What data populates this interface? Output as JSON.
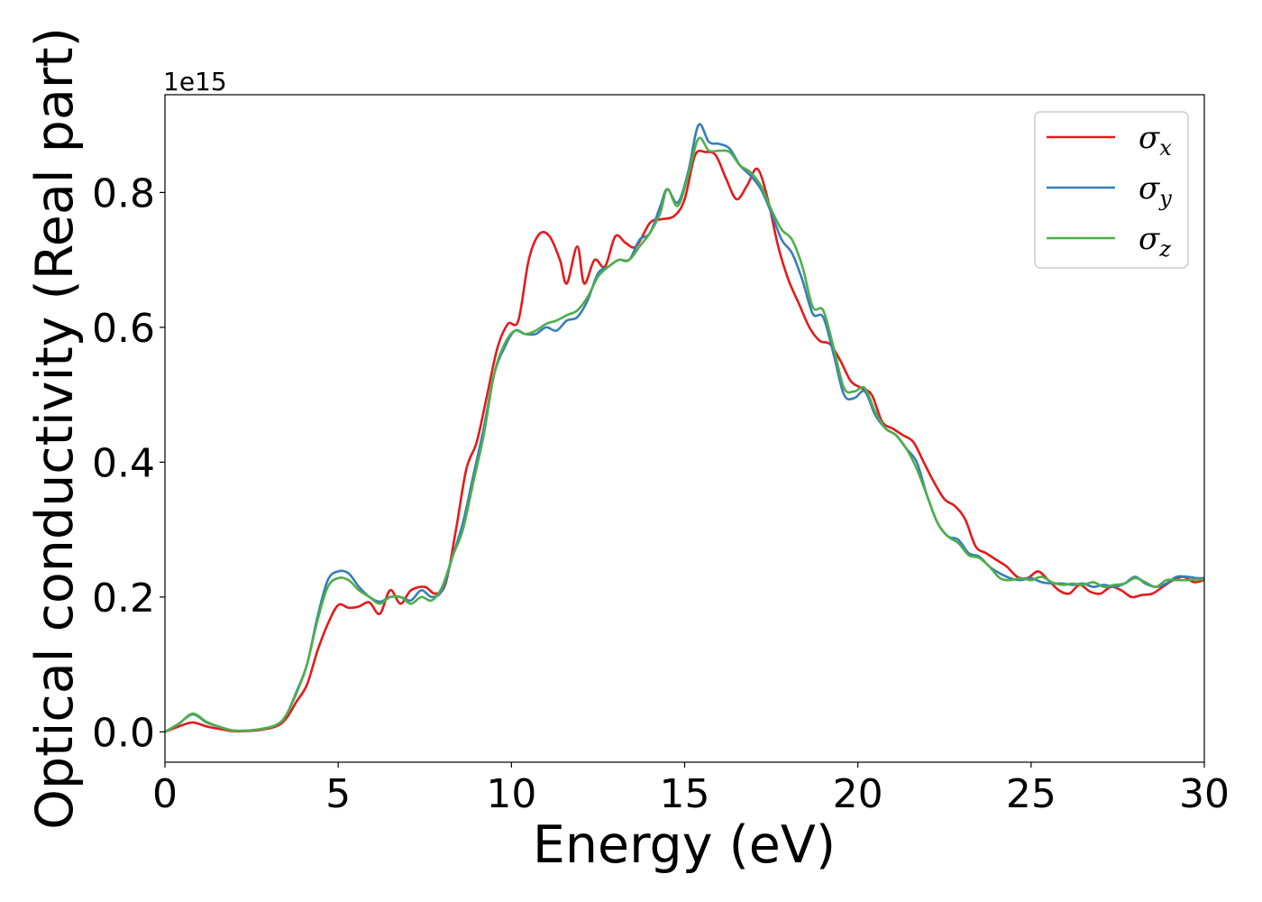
{
  "chart_data": {
    "type": "line",
    "xlabel": "Energy (eV)",
    "ylabel": "Optical conductivity (Real part)",
    "offset_text": "1e15",
    "xlim": [
      0,
      30
    ],
    "ylim": [
      -0.045,
      0.945
    ],
    "grid": false,
    "legend_position": "top-right",
    "x_ticks": [
      "0",
      "5",
      "10",
      "15",
      "20",
      "25",
      "30"
    ],
    "y_ticks": [
      "0.0",
      "0.2",
      "0.4",
      "0.6",
      "0.8"
    ],
    "series": [
      {
        "name": "σx",
        "legend_symbol": "σ",
        "legend_subscript": "x",
        "color": "#e41a1c",
        "points": [
          [
            0,
            0.0
          ],
          [
            0.4,
            0.008
          ],
          [
            0.8,
            0.014
          ],
          [
            1.2,
            0.008
          ],
          [
            1.6,
            0.004
          ],
          [
            2.0,
            0.001
          ],
          [
            2.6,
            0.002
          ],
          [
            3.2,
            0.008
          ],
          [
            3.5,
            0.02
          ],
          [
            3.8,
            0.045
          ],
          [
            4.1,
            0.07
          ],
          [
            4.4,
            0.12
          ],
          [
            4.7,
            0.16
          ],
          [
            5.0,
            0.188
          ],
          [
            5.3,
            0.184
          ],
          [
            5.6,
            0.186
          ],
          [
            5.9,
            0.192
          ],
          [
            6.2,
            0.175
          ],
          [
            6.5,
            0.21
          ],
          [
            6.8,
            0.19
          ],
          [
            7.1,
            0.21
          ],
          [
            7.5,
            0.215
          ],
          [
            7.8,
            0.205
          ],
          [
            8.1,
            0.22
          ],
          [
            8.4,
            0.3
          ],
          [
            8.7,
            0.39
          ],
          [
            9.0,
            0.43
          ],
          [
            9.3,
            0.5
          ],
          [
            9.6,
            0.57
          ],
          [
            9.9,
            0.605
          ],
          [
            10.2,
            0.61
          ],
          [
            10.5,
            0.7
          ],
          [
            10.8,
            0.738
          ],
          [
            11.1,
            0.735
          ],
          [
            11.4,
            0.7
          ],
          [
            11.6,
            0.665
          ],
          [
            11.9,
            0.72
          ],
          [
            12.1,
            0.665
          ],
          [
            12.4,
            0.7
          ],
          [
            12.7,
            0.69
          ],
          [
            13.0,
            0.735
          ],
          [
            13.3,
            0.725
          ],
          [
            13.6,
            0.72
          ],
          [
            14.0,
            0.755
          ],
          [
            14.3,
            0.76
          ],
          [
            14.7,
            0.765
          ],
          [
            15.0,
            0.79
          ],
          [
            15.3,
            0.855
          ],
          [
            15.6,
            0.86
          ],
          [
            15.9,
            0.855
          ],
          [
            16.2,
            0.82
          ],
          [
            16.5,
            0.79
          ],
          [
            16.8,
            0.81
          ],
          [
            17.1,
            0.835
          ],
          [
            17.4,
            0.79
          ],
          [
            17.7,
            0.72
          ],
          [
            18.0,
            0.67
          ],
          [
            18.3,
            0.635
          ],
          [
            18.6,
            0.6
          ],
          [
            18.9,
            0.58
          ],
          [
            19.2,
            0.575
          ],
          [
            19.5,
            0.55
          ],
          [
            19.8,
            0.52
          ],
          [
            20.1,
            0.51
          ],
          [
            20.4,
            0.5
          ],
          [
            20.7,
            0.46
          ],
          [
            21.0,
            0.45
          ],
          [
            21.3,
            0.44
          ],
          [
            21.6,
            0.43
          ],
          [
            21.9,
            0.4
          ],
          [
            22.2,
            0.37
          ],
          [
            22.5,
            0.345
          ],
          [
            22.8,
            0.335
          ],
          [
            23.1,
            0.315
          ],
          [
            23.4,
            0.275
          ],
          [
            23.7,
            0.265
          ],
          [
            24.0,
            0.255
          ],
          [
            24.3,
            0.245
          ],
          [
            24.6,
            0.23
          ],
          [
            24.9,
            0.228
          ],
          [
            25.2,
            0.238
          ],
          [
            25.5,
            0.225
          ],
          [
            25.8,
            0.21
          ],
          [
            26.1,
            0.205
          ],
          [
            26.4,
            0.218
          ],
          [
            26.7,
            0.208
          ],
          [
            27.0,
            0.205
          ],
          [
            27.3,
            0.215
          ],
          [
            27.6,
            0.21
          ],
          [
            27.9,
            0.2
          ],
          [
            28.2,
            0.203
          ],
          [
            28.5,
            0.205
          ],
          [
            28.8,
            0.215
          ],
          [
            29.1,
            0.225
          ],
          [
            29.4,
            0.23
          ],
          [
            29.7,
            0.222
          ],
          [
            30.0,
            0.225
          ]
        ]
      },
      {
        "name": "σy",
        "legend_symbol": "σ",
        "legend_subscript": "y",
        "color": "#377eb8",
        "points": [
          [
            0,
            0.0
          ],
          [
            0.4,
            0.012
          ],
          [
            0.8,
            0.026
          ],
          [
            1.2,
            0.014
          ],
          [
            1.6,
            0.007
          ],
          [
            2.0,
            0.002
          ],
          [
            2.6,
            0.003
          ],
          [
            3.2,
            0.01
          ],
          [
            3.5,
            0.025
          ],
          [
            3.8,
            0.06
          ],
          [
            4.1,
            0.1
          ],
          [
            4.4,
            0.17
          ],
          [
            4.7,
            0.225
          ],
          [
            5.0,
            0.238
          ],
          [
            5.3,
            0.235
          ],
          [
            5.6,
            0.215
          ],
          [
            5.9,
            0.2
          ],
          [
            6.2,
            0.193
          ],
          [
            6.5,
            0.2
          ],
          [
            6.8,
            0.2
          ],
          [
            7.1,
            0.195
          ],
          [
            7.4,
            0.21
          ],
          [
            7.7,
            0.2
          ],
          [
            8.0,
            0.21
          ],
          [
            8.3,
            0.26
          ],
          [
            8.6,
            0.31
          ],
          [
            8.9,
            0.38
          ],
          [
            9.2,
            0.45
          ],
          [
            9.5,
            0.53
          ],
          [
            9.8,
            0.57
          ],
          [
            10.1,
            0.595
          ],
          [
            10.4,
            0.59
          ],
          [
            10.7,
            0.59
          ],
          [
            11.0,
            0.6
          ],
          [
            11.3,
            0.595
          ],
          [
            11.6,
            0.61
          ],
          [
            11.9,
            0.615
          ],
          [
            12.2,
            0.64
          ],
          [
            12.5,
            0.68
          ],
          [
            12.8,
            0.69
          ],
          [
            13.1,
            0.7
          ],
          [
            13.4,
            0.7
          ],
          [
            13.7,
            0.73
          ],
          [
            14.0,
            0.74
          ],
          [
            14.3,
            0.78
          ],
          [
            14.5,
            0.805
          ],
          [
            14.8,
            0.785
          ],
          [
            15.1,
            0.83
          ],
          [
            15.4,
            0.9
          ],
          [
            15.7,
            0.875
          ],
          [
            16.0,
            0.872
          ],
          [
            16.3,
            0.865
          ],
          [
            16.6,
            0.84
          ],
          [
            16.9,
            0.825
          ],
          [
            17.2,
            0.805
          ],
          [
            17.5,
            0.77
          ],
          [
            17.8,
            0.73
          ],
          [
            18.1,
            0.71
          ],
          [
            18.4,
            0.67
          ],
          [
            18.7,
            0.62
          ],
          [
            19.0,
            0.615
          ],
          [
            19.3,
            0.56
          ],
          [
            19.6,
            0.5
          ],
          [
            19.9,
            0.495
          ],
          [
            20.2,
            0.505
          ],
          [
            20.5,
            0.47
          ],
          [
            20.8,
            0.45
          ],
          [
            21.1,
            0.44
          ],
          [
            21.4,
            0.42
          ],
          [
            21.7,
            0.4
          ],
          [
            22.0,
            0.35
          ],
          [
            22.3,
            0.31
          ],
          [
            22.6,
            0.29
          ],
          [
            22.9,
            0.285
          ],
          [
            23.2,
            0.265
          ],
          [
            23.5,
            0.26
          ],
          [
            23.8,
            0.245
          ],
          [
            24.1,
            0.235
          ],
          [
            24.4,
            0.228
          ],
          [
            24.7,
            0.225
          ],
          [
            25.0,
            0.228
          ],
          [
            25.3,
            0.222
          ],
          [
            25.6,
            0.22
          ],
          [
            25.9,
            0.22
          ],
          [
            26.2,
            0.218
          ],
          [
            26.5,
            0.22
          ],
          [
            26.8,
            0.215
          ],
          [
            27.1,
            0.218
          ],
          [
            27.4,
            0.215
          ],
          [
            27.7,
            0.22
          ],
          [
            28.0,
            0.23
          ],
          [
            28.3,
            0.22
          ],
          [
            28.6,
            0.215
          ],
          [
            28.9,
            0.22
          ],
          [
            29.2,
            0.23
          ],
          [
            29.5,
            0.23
          ],
          [
            29.8,
            0.228
          ],
          [
            30.0,
            0.228
          ]
        ]
      },
      {
        "name": "σz",
        "legend_symbol": "σ",
        "legend_subscript": "z",
        "color": "#4daf4a",
        "points": [
          [
            0,
            0.0
          ],
          [
            0.4,
            0.012
          ],
          [
            0.8,
            0.027
          ],
          [
            1.2,
            0.015
          ],
          [
            1.6,
            0.007
          ],
          [
            2.0,
            0.002
          ],
          [
            2.6,
            0.003
          ],
          [
            3.2,
            0.01
          ],
          [
            3.5,
            0.025
          ],
          [
            3.8,
            0.058
          ],
          [
            4.1,
            0.1
          ],
          [
            4.4,
            0.165
          ],
          [
            4.7,
            0.215
          ],
          [
            5.0,
            0.228
          ],
          [
            5.3,
            0.225
          ],
          [
            5.6,
            0.21
          ],
          [
            5.9,
            0.2
          ],
          [
            6.2,
            0.19
          ],
          [
            6.5,
            0.2
          ],
          [
            6.8,
            0.2
          ],
          [
            7.1,
            0.19
          ],
          [
            7.4,
            0.2
          ],
          [
            7.7,
            0.195
          ],
          [
            8.0,
            0.215
          ],
          [
            8.3,
            0.26
          ],
          [
            8.6,
            0.3
          ],
          [
            8.9,
            0.37
          ],
          [
            9.2,
            0.44
          ],
          [
            9.5,
            0.53
          ],
          [
            9.8,
            0.575
          ],
          [
            10.1,
            0.595
          ],
          [
            10.4,
            0.59
          ],
          [
            10.7,
            0.595
          ],
          [
            11.0,
            0.605
          ],
          [
            11.3,
            0.61
          ],
          [
            11.6,
            0.618
          ],
          [
            11.9,
            0.625
          ],
          [
            12.2,
            0.645
          ],
          [
            12.5,
            0.675
          ],
          [
            12.8,
            0.69
          ],
          [
            13.1,
            0.7
          ],
          [
            13.4,
            0.7
          ],
          [
            13.7,
            0.72
          ],
          [
            14.0,
            0.74
          ],
          [
            14.3,
            0.77
          ],
          [
            14.5,
            0.805
          ],
          [
            14.8,
            0.78
          ],
          [
            15.1,
            0.825
          ],
          [
            15.4,
            0.88
          ],
          [
            15.7,
            0.862
          ],
          [
            16.0,
            0.862
          ],
          [
            16.3,
            0.86
          ],
          [
            16.6,
            0.84
          ],
          [
            16.9,
            0.83
          ],
          [
            17.2,
            0.81
          ],
          [
            17.5,
            0.775
          ],
          [
            17.8,
            0.745
          ],
          [
            18.1,
            0.73
          ],
          [
            18.4,
            0.69
          ],
          [
            18.7,
            0.63
          ],
          [
            19.0,
            0.625
          ],
          [
            19.3,
            0.57
          ],
          [
            19.6,
            0.51
          ],
          [
            19.9,
            0.505
          ],
          [
            20.2,
            0.51
          ],
          [
            20.5,
            0.475
          ],
          [
            20.8,
            0.45
          ],
          [
            21.1,
            0.44
          ],
          [
            21.4,
            0.42
          ],
          [
            21.7,
            0.39
          ],
          [
            22.0,
            0.35
          ],
          [
            22.3,
            0.31
          ],
          [
            22.6,
            0.29
          ],
          [
            22.9,
            0.28
          ],
          [
            23.2,
            0.262
          ],
          [
            23.5,
            0.258
          ],
          [
            23.8,
            0.245
          ],
          [
            24.1,
            0.228
          ],
          [
            24.4,
            0.225
          ],
          [
            24.7,
            0.228
          ],
          [
            25.0,
            0.225
          ],
          [
            25.3,
            0.23
          ],
          [
            25.6,
            0.222
          ],
          [
            25.9,
            0.218
          ],
          [
            26.2,
            0.22
          ],
          [
            26.5,
            0.218
          ],
          [
            26.8,
            0.222
          ],
          [
            27.1,
            0.215
          ],
          [
            27.4,
            0.218
          ],
          [
            27.7,
            0.22
          ],
          [
            28.0,
            0.228
          ],
          [
            28.3,
            0.222
          ],
          [
            28.6,
            0.215
          ],
          [
            28.9,
            0.225
          ],
          [
            29.2,
            0.225
          ],
          [
            29.5,
            0.225
          ],
          [
            29.8,
            0.226
          ],
          [
            30.0,
            0.226
          ]
        ]
      }
    ]
  }
}
